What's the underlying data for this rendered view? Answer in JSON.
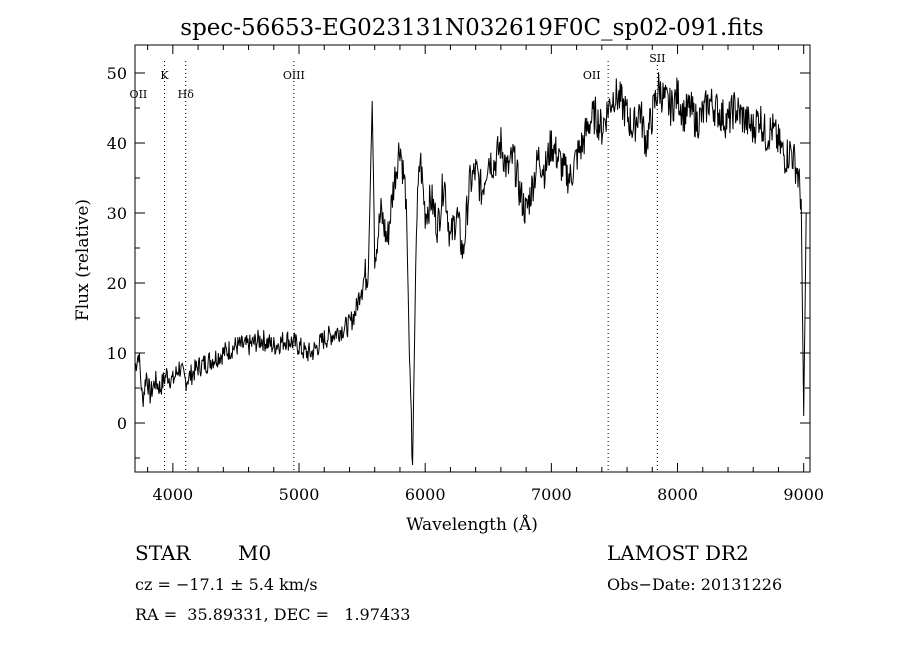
{
  "chart_data": {
    "type": "line",
    "title": "spec-56653-EG023131N032619F0C_sp02-091.fits",
    "xlabel": "Wavelength (Å)",
    "ylabel": "Flux (relative)",
    "xlim": [
      3700,
      9050
    ],
    "ylim": [
      -7,
      54
    ],
    "xticks": [
      4000,
      5000,
      6000,
      7000,
      8000,
      9000
    ],
    "yticks": [
      0,
      10,
      20,
      30,
      40,
      50
    ],
    "grid": false,
    "line_color": "#000000",
    "series": [
      {
        "x": [
          3700,
          3730,
          3760,
          3790,
          3820,
          3860,
          3900,
          3950,
          4000,
          4050,
          4100,
          4150,
          4200,
          4300,
          4400,
          4500,
          4600,
          4700,
          4800,
          4900,
          5000,
          5050,
          5100,
          5200,
          5300,
          5400,
          5450,
          5500,
          5550,
          5580,
          5600,
          5650,
          5700,
          5750,
          5800,
          5850,
          5880,
          5900,
          5930,
          5960,
          6000,
          6050,
          6100,
          6150,
          6200,
          6250,
          6300,
          6350,
          6400,
          6450,
          6500,
          6550,
          6600,
          6650,
          6700,
          6750,
          6800,
          6850,
          6900,
          6950,
          7000,
          7050,
          7100,
          7150,
          7200,
          7250,
          7300,
          7350,
          7400,
          7450,
          7500,
          7550,
          7600,
          7650,
          7700,
          7750,
          7800,
          7850,
          7900,
          7950,
          8000,
          8050,
          8100,
          8150,
          8200,
          8250,
          8300,
          8350,
          8400,
          8450,
          8500,
          8550,
          8600,
          8650,
          8700,
          8750,
          8800,
          8850,
          8900,
          8950,
          8980,
          9000,
          9020
        ],
        "y": [
          8,
          10,
          3,
          7,
          4,
          6,
          5,
          7,
          6,
          8,
          6,
          7,
          8,
          9,
          10,
          11,
          11,
          12,
          11,
          12,
          11,
          10,
          10,
          12,
          13,
          14,
          16,
          20,
          22,
          46,
          24,
          30,
          26,
          34,
          40,
          32,
          5,
          -6,
          28,
          38,
          30,
          32,
          28,
          35,
          26,
          30,
          24,
          34,
          36,
          33,
          38,
          37,
          40,
          36,
          38,
          33,
          30,
          34,
          38,
          36,
          40,
          38,
          36,
          35,
          38,
          40,
          43,
          44,
          42,
          45,
          47,
          46,
          44,
          42,
          45,
          40,
          44,
          48,
          46,
          45,
          47,
          44,
          45,
          43,
          44,
          46,
          45,
          44,
          43,
          45,
          44,
          43,
          42,
          44,
          41,
          42,
          40,
          38,
          39,
          36,
          32,
          1,
          30
        ]
      }
    ],
    "annotations": [
      {
        "label": "OII",
        "x": 3727,
        "row": 2
      },
      {
        "label": "K",
        "x": 3934,
        "row": 1
      },
      {
        "label": "Hδ",
        "x": 4102,
        "row": 2
      },
      {
        "label": "OIII",
        "x": 4959,
        "row": 1
      },
      {
        "label": "OII",
        "x": 7320,
        "row": 1
      },
      {
        "label": "SII",
        "x": 7840,
        "row": 0
      }
    ],
    "annotation_lines": [
      3934,
      4102,
      4959,
      7450,
      7840
    ]
  },
  "info": {
    "class_label": "STAR",
    "subclass": "M0",
    "survey": "LAMOST DR2",
    "cz": "cz = −17.1 ± 5.4 km/s",
    "obs_date": "Obs−Date: 20131226",
    "coords": "RA =  35.89331, DEC =   1.97433"
  }
}
